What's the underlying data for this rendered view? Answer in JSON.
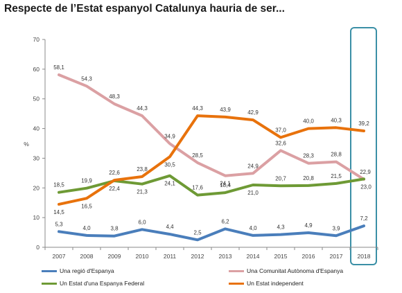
{
  "title": "Respecte de l’Estat espanyol Catalunya hauria de ser...",
  "chart_data": {
    "type": "line",
    "title": "Respecte de l’Estat espanyol Catalunya hauria de ser...",
    "xlabel": "",
    "ylabel": "%",
    "ylim": [
      0,
      70
    ],
    "yticks": [
      0,
      10,
      20,
      30,
      40,
      50,
      60,
      70
    ],
    "grid": false,
    "legend_position": "bottom",
    "categories": [
      "2007",
      "2008",
      "2009",
      "2010",
      "2011",
      "2012",
      "2013",
      "2014",
      "2015",
      "2016",
      "2017",
      "2018"
    ],
    "highlight_category": "2018",
    "highlight_color": "#3a8fa6",
    "series": [
      {
        "name": "Una regió d'Espanya",
        "color": "#4a7ebb",
        "values": [
          5.3,
          4.0,
          3.8,
          6.0,
          4.4,
          2.5,
          6.2,
          4.0,
          4.3,
          4.9,
          3.9,
          7.2
        ],
        "labels": [
          "5,3",
          "4,0",
          "3,8",
          "6,0",
          "4,4",
          "2,5",
          "6,2",
          "4,0",
          "4,3",
          "4,9",
          "3,9",
          "7,2"
        ]
      },
      {
        "name": "Una Comunitat Autònoma d'Espanya",
        "color": "#dba0a3",
        "values": [
          58.1,
          54.3,
          48.3,
          44.3,
          34.9,
          28.5,
          24.1,
          24.9,
          32.6,
          28.3,
          28.8,
          22.9
        ],
        "labels": [
          "58,1",
          "54,3",
          "48,3",
          "44,3",
          "34,9",
          "28,5",
          "24,1",
          "24,9",
          "32,6",
          "28,3",
          "28,8",
          "22,9"
        ]
      },
      {
        "name": "Un Estat d'una Espanya Federal",
        "color": "#6e9a35",
        "values": [
          18.5,
          19.9,
          22.4,
          21.3,
          24.1,
          17.6,
          18.4,
          21.0,
          20.7,
          20.8,
          21.5,
          23.0
        ],
        "labels": [
          "18,5",
          "19,9",
          "22,4",
          "21,3",
          "24,1",
          "17,6",
          "18,4",
          "21,0",
          "20,7",
          "20,8",
          "21,5",
          "23,0"
        ]
      },
      {
        "name": "Un Estat independent",
        "color": "#e8720c",
        "values": [
          14.5,
          16.5,
          22.6,
          23.8,
          30.5,
          44.3,
          43.9,
          42.9,
          37.0,
          40.0,
          40.3,
          39.2
        ],
        "labels": [
          "14,5",
          "16,5",
          "22,6",
          "23,8",
          "30,5",
          "44,3",
          "43,9",
          "42,9",
          "37,0",
          "40,0",
          "40,3",
          "39,2"
        ]
      }
    ]
  }
}
